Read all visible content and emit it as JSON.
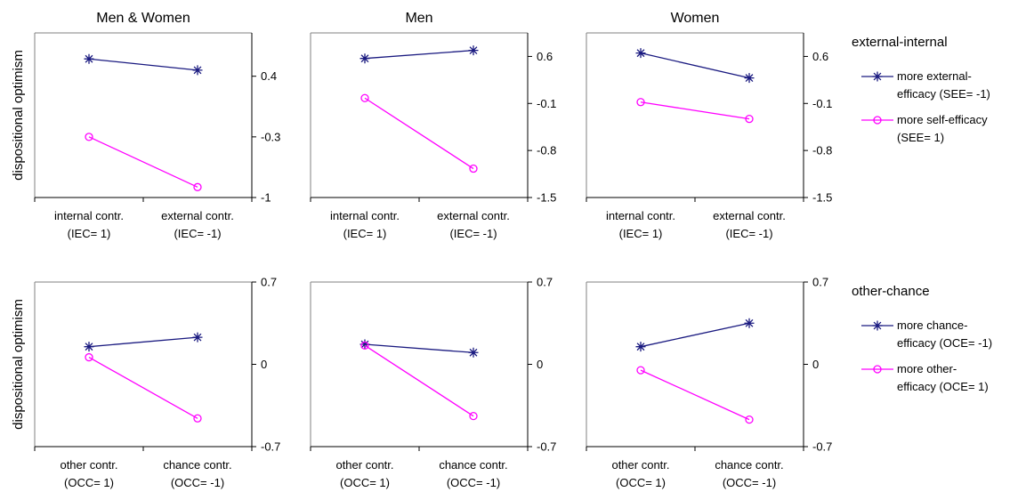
{
  "colors": {
    "series_a": "#1a1a80",
    "series_b": "#ff00ff",
    "axis": "#000000"
  },
  "rows": [
    {
      "ylabel": "dispositional optimism",
      "legend": {
        "title": "external-internal",
        "entries": [
          {
            "lines": [
              "more external-",
              "efficacy (SEE= -1)"
            ],
            "marker": "star"
          },
          {
            "lines": [
              "more self-efficacy",
              "(SEE= 1)"
            ],
            "marker": "circle"
          }
        ]
      }
    },
    {
      "ylabel": "dispositional optimism",
      "legend": {
        "title": "other-chance",
        "entries": [
          {
            "lines": [
              "more chance-",
              "efficacy (OCE= -1)"
            ],
            "marker": "star"
          },
          {
            "lines": [
              "more other-",
              "efficacy (OCE= 1)"
            ],
            "marker": "circle"
          }
        ]
      }
    }
  ],
  "chart_data": [
    {
      "type": "line",
      "title": "Men & Women",
      "row": 0,
      "col": 0,
      "categories": [
        [
          "internal contr.",
          "(IEC= 1)"
        ],
        [
          "external contr.",
          "(IEC= -1)"
        ]
      ],
      "ylim": [
        -1,
        0.9
      ],
      "yticks": [
        0.4,
        -0.3,
        -1
      ],
      "ytick_labels": [
        "0.4",
        "-0.3",
        "-1"
      ],
      "grid": false,
      "legend": "right",
      "series": [
        {
          "values": [
            0.6,
            0.47
          ],
          "marker": "star"
        },
        {
          "values": [
            -0.3,
            -0.88
          ],
          "marker": "circle"
        }
      ]
    },
    {
      "type": "line",
      "title": "Men",
      "row": 0,
      "col": 1,
      "categories": [
        [
          "internal contr.",
          "(IEC= 1)"
        ],
        [
          "external contr.",
          "(IEC= -1)"
        ]
      ],
      "ylim": [
        -1.5,
        0.95
      ],
      "yticks": [
        0.6,
        -0.1,
        -0.8,
        -1.5
      ],
      "ytick_labels": [
        "0.6",
        "-0.1",
        "-0.8",
        "-1.5"
      ],
      "grid": false,
      "legend": "right",
      "series": [
        {
          "values": [
            0.57,
            0.69
          ],
          "marker": "star"
        },
        {
          "values": [
            -0.02,
            -1.07
          ],
          "marker": "circle"
        }
      ]
    },
    {
      "type": "line",
      "title": "Women",
      "row": 0,
      "col": 2,
      "categories": [
        [
          "internal contr.",
          "(IEC= 1)"
        ],
        [
          "external contr.",
          "(IEC= -1)"
        ]
      ],
      "ylim": [
        -1.5,
        0.95
      ],
      "yticks": [
        0.6,
        -0.1,
        -0.8,
        -1.5
      ],
      "ytick_labels": [
        "0.6",
        "-0.1",
        "-0.8",
        "-1.5"
      ],
      "grid": false,
      "legend": "right",
      "series": [
        {
          "values": [
            0.65,
            0.28
          ],
          "marker": "star"
        },
        {
          "values": [
            -0.08,
            -0.33
          ],
          "marker": "circle"
        }
      ]
    },
    {
      "type": "line",
      "title": "",
      "row": 1,
      "col": 0,
      "categories": [
        [
          "other contr.",
          "(OCC= 1)"
        ],
        [
          "chance contr.",
          "(OCC= -1)"
        ]
      ],
      "ylim": [
        -0.7,
        0.7
      ],
      "yticks": [
        0.7,
        0,
        -0.7
      ],
      "ytick_labels": [
        "0.7",
        "0",
        "-0.7"
      ],
      "grid": false,
      "legend": "right",
      "series": [
        {
          "values": [
            0.15,
            0.23
          ],
          "marker": "star"
        },
        {
          "values": [
            0.06,
            -0.46
          ],
          "marker": "circle"
        }
      ]
    },
    {
      "type": "line",
      "title": "",
      "row": 1,
      "col": 1,
      "categories": [
        [
          "other contr.",
          "(OCC= 1)"
        ],
        [
          "chance contr.",
          "(OCC= -1)"
        ]
      ],
      "ylim": [
        -0.7,
        0.7
      ],
      "yticks": [
        0.7,
        0,
        -0.7
      ],
      "ytick_labels": [
        "0.7",
        "0",
        "-0.7"
      ],
      "grid": false,
      "legend": "right",
      "series": [
        {
          "values": [
            0.17,
            0.1
          ],
          "marker": "star"
        },
        {
          "values": [
            0.16,
            -0.44
          ],
          "marker": "circle"
        }
      ]
    },
    {
      "type": "line",
      "title": "",
      "row": 1,
      "col": 2,
      "categories": [
        [
          "other contr.",
          "(OCC= 1)"
        ],
        [
          "chance contr.",
          "(OCC= -1)"
        ]
      ],
      "ylim": [
        -0.7,
        0.7
      ],
      "yticks": [
        0.7,
        0,
        -0.7
      ],
      "ytick_labels": [
        "0.7",
        "0",
        "-0.7"
      ],
      "grid": false,
      "legend": "right",
      "series": [
        {
          "values": [
            0.15,
            0.35
          ],
          "marker": "star"
        },
        {
          "values": [
            -0.05,
            -0.47
          ],
          "marker": "circle"
        }
      ]
    }
  ]
}
